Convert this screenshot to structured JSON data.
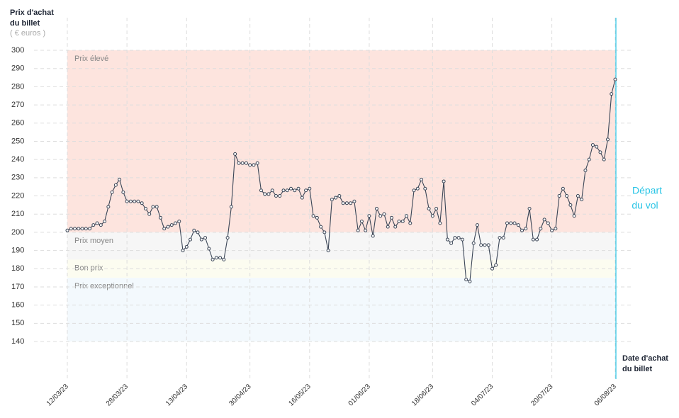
{
  "chart_data": {
    "type": "line",
    "y_label": [
      "Prix d'achat",
      "du billet"
    ],
    "y_unit": "( € euros )",
    "x_label": [
      "Date d'achat",
      "du billet"
    ],
    "annotation": [
      "Départ",
      "du vol"
    ],
    "ylim": [
      140,
      300
    ],
    "yticks": [
      140,
      150,
      160,
      170,
      180,
      190,
      200,
      210,
      220,
      230,
      240,
      250,
      260,
      270,
      280,
      290,
      300
    ],
    "grid": true,
    "bands": [
      {
        "label": "Prix élevé",
        "from": 200,
        "to": 300,
        "color": "#fde4de"
      },
      {
        "label": "Prix moyen",
        "from": 185,
        "to": 200,
        "color": "#f6f6f6"
      },
      {
        "label": "Bon prix",
        "from": 175,
        "to": 185,
        "color": "#fcfcf0"
      },
      {
        "label": "Prix exceptionnel",
        "from": 140,
        "to": 175,
        "color": "#f3f9fd"
      }
    ],
    "categories": [
      "12/03/23",
      null,
      null,
      null,
      null,
      null,
      null,
      null,
      null,
      null,
      null,
      null,
      null,
      null,
      null,
      null,
      "28/03/23",
      null,
      null,
      null,
      null,
      null,
      null,
      null,
      null,
      null,
      null,
      null,
      null,
      null,
      null,
      null,
      "13/04/23",
      null,
      null,
      null,
      null,
      null,
      null,
      null,
      null,
      null,
      null,
      null,
      null,
      null,
      null,
      null,
      null,
      "30/04/23",
      null,
      null,
      null,
      null,
      null,
      null,
      null,
      null,
      null,
      null,
      null,
      null,
      null,
      null,
      null,
      "16/05/23",
      null,
      null,
      null,
      null,
      null,
      null,
      null,
      null,
      null,
      null,
      null,
      null,
      null,
      null,
      null,
      "01/06/23",
      null,
      null,
      null,
      null,
      null,
      null,
      null,
      null,
      null,
      null,
      null,
      null,
      null,
      null,
      null,
      null,
      "18/06/23",
      null,
      null,
      null,
      null,
      null,
      null,
      null,
      null,
      null,
      null,
      null,
      null,
      null,
      null,
      null,
      "04/07/23",
      null,
      null,
      null,
      null,
      null,
      null,
      null,
      null,
      null,
      null,
      null,
      null,
      null,
      null,
      null,
      "20/07/23",
      null,
      null,
      null,
      null,
      null,
      null,
      null,
      null,
      null,
      null,
      null,
      null,
      null,
      null,
      null,
      null,
      "06/08/23"
    ],
    "series": [
      {
        "name": "Prix",
        "color": "#3a4556",
        "values": [
          201,
          202,
          202,
          202,
          202,
          202,
          202,
          204,
          205,
          204,
          206,
          214,
          222,
          226,
          229,
          222,
          217,
          217,
          217,
          217,
          216,
          213,
          210,
          214,
          214,
          208,
          202,
          203,
          204,
          205,
          206,
          190,
          192,
          196,
          201,
          200,
          196,
          197,
          191,
          185,
          186,
          186,
          185,
          197,
          214,
          243,
          238,
          238,
          238,
          237,
          237,
          238,
          223,
          221,
          221,
          223,
          220,
          220,
          223,
          223,
          224,
          223,
          224,
          219,
          223,
          224,
          209,
          208,
          203,
          200,
          190,
          218,
          219,
          220,
          216,
          216,
          216,
          217,
          201,
          206,
          201,
          209,
          198,
          213,
          209,
          210,
          203,
          208,
          203,
          206,
          206,
          209,
          205,
          223,
          224,
          229,
          224,
          213,
          209,
          213,
          205,
          228,
          196,
          194,
          197,
          197,
          196,
          174,
          173,
          194,
          204,
          193,
          193,
          193,
          180,
          182,
          197,
          197,
          205,
          205,
          205,
          204,
          201,
          202,
          213,
          196,
          196,
          202,
          207,
          205,
          201,
          202,
          220,
          224,
          220,
          215,
          209,
          220,
          218,
          234,
          240,
          248,
          247,
          244,
          240,
          251,
          276,
          284
        ]
      }
    ],
    "line_color": "#29c5e6"
  }
}
